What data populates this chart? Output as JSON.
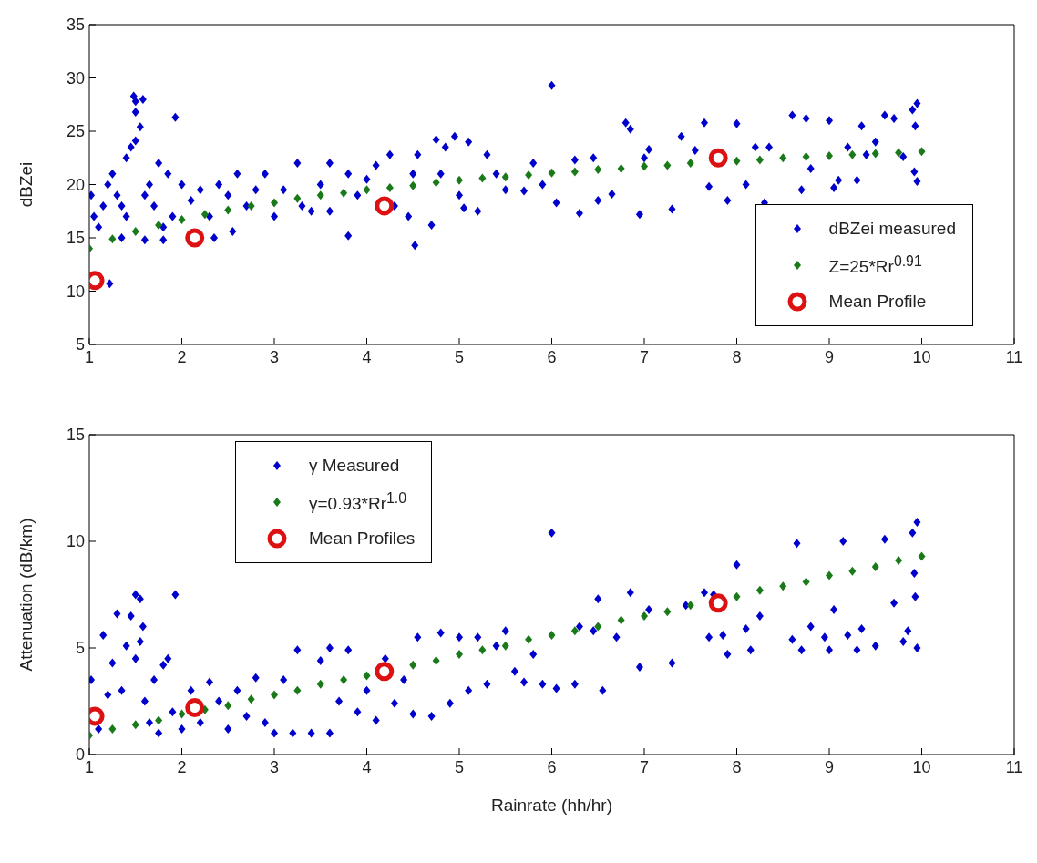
{
  "chart_data": [
    {
      "type": "scatter",
      "ylabel": "dBZei",
      "xlim": [
        1,
        11
      ],
      "xticks": [
        1,
        2,
        3,
        4,
        5,
        6,
        7,
        8,
        9,
        10,
        11
      ],
      "ylim": [
        5,
        35
      ],
      "yticks": [
        5,
        10,
        15,
        20,
        25,
        30,
        35
      ],
      "grid": false,
      "legend": "bottom right",
      "series": [
        {
          "name": "dBZei measured",
          "type": "scatter",
          "marker": "diamond",
          "color": "#0000cc",
          "x": [
            1.02,
            1.05,
            1.1,
            1.15,
            1.2,
            1.25,
            1.3,
            1.35,
            1.4,
            1.45,
            1.48,
            1.5,
            1.5,
            1.55,
            1.58,
            1.5,
            1.4,
            1.6,
            1.65,
            1.7,
            1.75,
            1.8,
            1.85,
            1.9,
            1.93,
            1.22,
            1.35,
            1.6,
            1.8,
            2.0,
            2.1,
            2.2,
            2.3,
            2.35,
            2.4,
            2.5,
            2.55,
            2.6,
            2.7,
            2.8,
            2.9,
            3.0,
            3.1,
            3.25,
            3.3,
            3.4,
            3.5,
            3.6,
            3.6,
            3.8,
            3.8,
            3.9,
            4.0,
            4.1,
            4.25,
            4.3,
            4.45,
            4.5,
            4.52,
            4.55,
            4.7,
            4.75,
            4.8,
            4.85,
            4.95,
            5.0,
            5.05,
            5.1,
            5.2,
            5.3,
            5.4,
            5.5,
            5.7,
            5.8,
            5.9,
            6.0,
            6.05,
            6.25,
            6.3,
            6.45,
            6.5,
            6.65,
            6.8,
            6.85,
            6.95,
            7.0,
            7.05,
            7.3,
            7.4,
            7.55,
            7.65,
            7.7,
            7.9,
            8.0,
            8.1,
            8.2,
            8.3,
            8.35,
            8.6,
            8.7,
            8.75,
            8.8,
            9.0,
            9.05,
            9.1,
            9.2,
            9.3,
            9.35,
            9.4,
            9.5,
            9.6,
            9.7,
            9.8,
            9.9,
            9.92,
            9.95,
            9.95,
            9.93
          ],
          "values": [
            19,
            17,
            16,
            18,
            20,
            21,
            19,
            18,
            17,
            23.5,
            28.3,
            27.8,
            26.8,
            25.4,
            28,
            24.1,
            22.5,
            19,
            20,
            18,
            22,
            16,
            21,
            17,
            26.3,
            10.7,
            15,
            14.8,
            14.8,
            20,
            18.5,
            19.5,
            17,
            15,
            20,
            19,
            15.6,
            21,
            18,
            19.5,
            21,
            17,
            19.5,
            22,
            18,
            17.5,
            20,
            22,
            17.5,
            21,
            15.2,
            19,
            20.5,
            21.8,
            22.8,
            18,
            17,
            21,
            14.3,
            22.8,
            16.2,
            24.2,
            21,
            23.5,
            24.5,
            19,
            17.8,
            24,
            17.5,
            22.8,
            21,
            19.5,
            19.4,
            22,
            20,
            29.3,
            18.3,
            22.3,
            17.3,
            22.5,
            18.5,
            19.1,
            25.8,
            25.2,
            17.2,
            22.5,
            23.3,
            17.7,
            24.5,
            23.2,
            25.8,
            19.8,
            18.5,
            25.7,
            20,
            23.5,
            18.3,
            23.5,
            26.5,
            19.5,
            26.2,
            21.5,
            26,
            19.7,
            20.4,
            23.5,
            20.4,
            25.5,
            22.8,
            24,
            26.5,
            26.2,
            22.6,
            27,
            21.2,
            27.6,
            20.3,
            25.5
          ]
        },
        {
          "name": "Z=25*Rr$^{0.91}$",
          "type": "scatter",
          "marker": "diamond",
          "color": "#1a7a1a",
          "x": [
            1,
            1.25,
            1.5,
            1.75,
            2,
            2.25,
            2.5,
            2.75,
            3,
            3.25,
            3.5,
            3.75,
            4,
            4.25,
            4.5,
            4.75,
            5,
            5.25,
            5.5,
            5.75,
            6,
            6.25,
            6.5,
            6.75,
            7,
            7.25,
            7.5,
            8,
            8.25,
            8.5,
            8.75,
            9,
            9.25,
            9.5,
            9.75,
            10
          ],
          "values": [
            14.0,
            14.9,
            15.6,
            16.2,
            16.7,
            17.2,
            17.6,
            18.0,
            18.3,
            18.7,
            19.0,
            19.2,
            19.5,
            19.7,
            19.9,
            20.2,
            20.4,
            20.6,
            20.7,
            20.9,
            21.1,
            21.2,
            21.4,
            21.5,
            21.7,
            21.8,
            22.0,
            22.2,
            22.3,
            22.5,
            22.6,
            22.7,
            22.8,
            22.9,
            23.0,
            23.1
          ]
        },
        {
          "name": "Mean Profile",
          "type": "scatter",
          "marker": "circle",
          "color": "#dd1111",
          "x": [
            1.06,
            2.14,
            4.19,
            7.8
          ],
          "values": [
            11,
            15,
            18,
            22.5
          ]
        }
      ]
    },
    {
      "type": "scatter",
      "xlabel": "Rainrate (hh/hr)",
      "ylabel": "Attenuation (dB/km)",
      "xlim": [
        1,
        11
      ],
      "xticks": [
        1,
        2,
        3,
        4,
        5,
        6,
        7,
        8,
        9,
        10,
        11
      ],
      "ylim": [
        0,
        15
      ],
      "yticks": [
        0,
        5,
        10,
        15
      ],
      "grid": false,
      "legend": "top left",
      "series": [
        {
          "name": "γ Measured",
          "type": "scatter",
          "marker": "diamond",
          "color": "#0000cc",
          "x": [
            1.02,
            1.1,
            1.15,
            1.2,
            1.25,
            1.3,
            1.35,
            1.4,
            1.45,
            1.5,
            1.55,
            1.5,
            1.55,
            1.58,
            1.6,
            1.65,
            1.7,
            1.75,
            1.8,
            1.85,
            1.9,
            1.93,
            2.0,
            2.1,
            2.2,
            2.3,
            2.4,
            2.5,
            2.6,
            2.7,
            2.8,
            2.9,
            3.0,
            3.1,
            3.2,
            3.25,
            3.4,
            3.5,
            3.6,
            3.6,
            3.7,
            3.8,
            3.9,
            4.0,
            4.1,
            4.2,
            4.3,
            4.4,
            4.5,
            4.55,
            4.7,
            4.8,
            4.9,
            5.0,
            5.1,
            5.2,
            5.3,
            5.4,
            5.5,
            5.6,
            5.7,
            5.8,
            5.9,
            6.0,
            6.05,
            6.25,
            6.3,
            6.45,
            6.5,
            6.55,
            6.7,
            6.85,
            6.95,
            7.05,
            7.3,
            7.45,
            7.65,
            7.7,
            7.75,
            7.85,
            7.9,
            8.0,
            8.1,
            8.15,
            8.25,
            8.6,
            8.65,
            8.7,
            8.8,
            8.95,
            9.0,
            9.05,
            9.15,
            9.2,
            9.3,
            9.35,
            9.5,
            9.6,
            9.7,
            9.8,
            9.85,
            9.9,
            9.92,
            9.95,
            9.95,
            9.93
          ],
          "values": [
            3.5,
            1.2,
            5.6,
            2.8,
            4.3,
            6.6,
            3,
            5.1,
            6.5,
            7.5,
            7.3,
            4.5,
            5.3,
            6,
            2.5,
            1.5,
            3.5,
            1,
            4.2,
            4.5,
            2,
            7.5,
            1.2,
            3,
            1.5,
            3.4,
            2.5,
            1.2,
            3,
            1.8,
            3.6,
            1.5,
            1,
            3.5,
            1,
            4.9,
            1,
            4.4,
            1,
            5,
            2.5,
            4.9,
            2,
            3,
            1.6,
            4.5,
            2.4,
            3.5,
            1.9,
            5.5,
            1.8,
            5.7,
            2.4,
            5.5,
            3,
            5.5,
            3.3,
            5.1,
            5.8,
            3.9,
            3.4,
            4.7,
            3.3,
            10.4,
            3.1,
            3.3,
            6,
            5.8,
            7.3,
            3,
            5.5,
            7.6,
            4.1,
            6.8,
            4.3,
            7,
            7.6,
            5.5,
            7.5,
            5.6,
            4.7,
            8.9,
            5.9,
            4.9,
            6.5,
            5.4,
            9.9,
            4.9,
            6,
            5.5,
            4.9,
            6.8,
            10,
            5.6,
            4.9,
            5.9,
            5.1,
            10.1,
            7.1,
            5.3,
            5.8,
            10.4,
            8.5,
            10.9,
            5,
            7.4
          ]
        },
        {
          "name": "γ=0.93*Rr$^{1.0}$",
          "type": "scatter",
          "marker": "diamond",
          "color": "#1a7a1a",
          "x": [
            1,
            1.25,
            1.5,
            1.75,
            2,
            2.25,
            2.5,
            2.75,
            3,
            3.25,
            3.5,
            3.75,
            4,
            4.5,
            4.75,
            5,
            5.25,
            5.5,
            5.75,
            6,
            6.25,
            6.5,
            6.75,
            7,
            7.25,
            7.5,
            8,
            8.25,
            8.5,
            8.75,
            9,
            9.25,
            9.5,
            9.75,
            10
          ],
          "values": [
            0.9,
            1.2,
            1.4,
            1.6,
            1.9,
            2.1,
            2.3,
            2.6,
            2.8,
            3.0,
            3.3,
            3.5,
            3.7,
            4.2,
            4.4,
            4.7,
            4.9,
            5.1,
            5.4,
            5.6,
            5.8,
            6.0,
            6.3,
            6.5,
            6.7,
            7.0,
            7.4,
            7.7,
            7.9,
            8.1,
            8.4,
            8.6,
            8.8,
            9.1,
            9.3
          ]
        },
        {
          "name": "Mean Profiles",
          "type": "scatter",
          "marker": "circle",
          "color": "#dd1111",
          "x": [
            1.06,
            2.14,
            4.19,
            7.8
          ],
          "values": [
            1.8,
            2.2,
            3.9,
            7.1
          ]
        }
      ]
    }
  ]
}
